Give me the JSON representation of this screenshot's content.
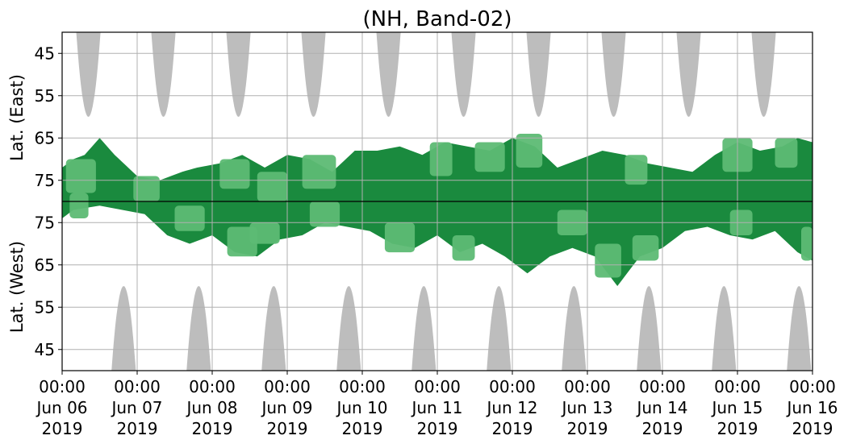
{
  "chart_data": {
    "type": "heatmap",
    "title": "(NH, Band-02)",
    "ylabel_top": "Lat. (East)",
    "ylabel_bottom": "Lat. (West)",
    "y_ticks_top": [
      "45",
      "55",
      "65",
      "75"
    ],
    "y_ticks_bottom": [
      "75",
      "65",
      "55",
      "45"
    ],
    "x_ticks": [
      {
        "time": "00:00",
        "date": "Jun 06",
        "year": "2019"
      },
      {
        "time": "00:00",
        "date": "Jun 07",
        "year": "2019"
      },
      {
        "time": "00:00",
        "date": "Jun 08",
        "year": "2019"
      },
      {
        "time": "00:00",
        "date": "Jun 09",
        "year": "2019"
      },
      {
        "time": "00:00",
        "date": "Jun 10",
        "year": "2019"
      },
      {
        "time": "00:00",
        "date": "Jun 11",
        "year": "2019"
      },
      {
        "time": "00:00",
        "date": "Jun 12",
        "year": "2019"
      },
      {
        "time": "00:00",
        "date": "Jun 13",
        "year": "2019"
      },
      {
        "time": "00:00",
        "date": "Jun 14",
        "year": "2019"
      },
      {
        "time": "00:00",
        "date": "Jun 15",
        "year": "2019"
      },
      {
        "time": "00:00",
        "date": "Jun 16",
        "year": "2019"
      }
    ],
    "x_range_days": [
      0,
      10
    ],
    "grid": true,
    "colors": {
      "no_data": "#bdbdbd",
      "strong": "#1a8a3e",
      "moderate": "#5dbb74"
    },
    "no_data_east": [
      {
        "center_day": 0.35,
        "half_width_day": 0.17,
        "lowest_lat": 60
      },
      {
        "center_day": 1.35,
        "half_width_day": 0.17,
        "lowest_lat": 60
      },
      {
        "center_day": 2.35,
        "half_width_day": 0.17,
        "lowest_lat": 60
      },
      {
        "center_day": 3.35,
        "half_width_day": 0.17,
        "lowest_lat": 60
      },
      {
        "center_day": 4.35,
        "half_width_day": 0.17,
        "lowest_lat": 60
      },
      {
        "center_day": 5.35,
        "half_width_day": 0.17,
        "lowest_lat": 60
      },
      {
        "center_day": 6.35,
        "half_width_day": 0.17,
        "lowest_lat": 60
      },
      {
        "center_day": 7.35,
        "half_width_day": 0.17,
        "lowest_lat": 60
      },
      {
        "center_day": 8.35,
        "half_width_day": 0.17,
        "lowest_lat": 60
      },
      {
        "center_day": 9.35,
        "half_width_day": 0.17,
        "lowest_lat": 60
      }
    ],
    "no_data_west": [
      {
        "center_day": 0.82,
        "half_width_day": 0.17,
        "lowest_lat": 60
      },
      {
        "center_day": 1.82,
        "half_width_day": 0.17,
        "lowest_lat": 60
      },
      {
        "center_day": 2.82,
        "half_width_day": 0.17,
        "lowest_lat": 60
      },
      {
        "center_day": 3.82,
        "half_width_day": 0.17,
        "lowest_lat": 60
      },
      {
        "center_day": 4.82,
        "half_width_day": 0.17,
        "lowest_lat": 60
      },
      {
        "center_day": 5.82,
        "half_width_day": 0.17,
        "lowest_lat": 60
      },
      {
        "center_day": 6.82,
        "half_width_day": 0.17,
        "lowest_lat": 60
      },
      {
        "center_day": 7.82,
        "half_width_day": 0.17,
        "lowest_lat": 60
      },
      {
        "center_day": 8.82,
        "half_width_day": 0.17,
        "lowest_lat": 60
      },
      {
        "center_day": 9.82,
        "half_width_day": 0.17,
        "lowest_lat": 60
      }
    ],
    "activity_east": [
      {
        "day": 0.0,
        "lowest_lat": 72
      },
      {
        "day": 0.15,
        "lowest_lat": 70
      },
      {
        "day": 0.3,
        "lowest_lat": 69
      },
      {
        "day": 0.5,
        "lowest_lat": 65
      },
      {
        "day": 0.7,
        "lowest_lat": 69
      },
      {
        "day": 1.0,
        "lowest_lat": 74
      },
      {
        "day": 1.3,
        "lowest_lat": 75
      },
      {
        "day": 1.6,
        "lowest_lat": 73
      },
      {
        "day": 1.8,
        "lowest_lat": 72
      },
      {
        "day": 2.1,
        "lowest_lat": 71
      },
      {
        "day": 2.4,
        "lowest_lat": 69
      },
      {
        "day": 2.7,
        "lowest_lat": 72
      },
      {
        "day": 3.0,
        "lowest_lat": 69
      },
      {
        "day": 3.3,
        "lowest_lat": 70
      },
      {
        "day": 3.6,
        "lowest_lat": 73
      },
      {
        "day": 3.9,
        "lowest_lat": 68
      },
      {
        "day": 4.2,
        "lowest_lat": 68
      },
      {
        "day": 4.5,
        "lowest_lat": 67
      },
      {
        "day": 4.8,
        "lowest_lat": 69
      },
      {
        "day": 5.1,
        "lowest_lat": 66
      },
      {
        "day": 5.4,
        "lowest_lat": 67
      },
      {
        "day": 5.7,
        "lowest_lat": 68
      },
      {
        "day": 6.0,
        "lowest_lat": 65
      },
      {
        "day": 6.3,
        "lowest_lat": 67
      },
      {
        "day": 6.6,
        "lowest_lat": 72
      },
      {
        "day": 6.9,
        "lowest_lat": 70
      },
      {
        "day": 7.2,
        "lowest_lat": 68
      },
      {
        "day": 7.5,
        "lowest_lat": 69
      },
      {
        "day": 7.8,
        "lowest_lat": 71
      },
      {
        "day": 8.1,
        "lowest_lat": 72
      },
      {
        "day": 8.4,
        "lowest_lat": 73
      },
      {
        "day": 8.7,
        "lowest_lat": 69
      },
      {
        "day": 9.0,
        "lowest_lat": 66
      },
      {
        "day": 9.3,
        "lowest_lat": 68
      },
      {
        "day": 9.6,
        "lowest_lat": 67
      },
      {
        "day": 9.8,
        "lowest_lat": 65
      },
      {
        "day": 10.0,
        "lowest_lat": 66
      }
    ],
    "activity_west": [
      {
        "day": 0.0,
        "lowest_lat": 76
      },
      {
        "day": 0.15,
        "lowest_lat": 78
      },
      {
        "day": 0.5,
        "lowest_lat": 79
      },
      {
        "day": 0.8,
        "lowest_lat": 78
      },
      {
        "day": 1.1,
        "lowest_lat": 77
      },
      {
        "day": 1.4,
        "lowest_lat": 72
      },
      {
        "day": 1.7,
        "lowest_lat": 70
      },
      {
        "day": 2.0,
        "lowest_lat": 72
      },
      {
        "day": 2.3,
        "lowest_lat": 68
      },
      {
        "day": 2.6,
        "lowest_lat": 67
      },
      {
        "day": 2.9,
        "lowest_lat": 71
      },
      {
        "day": 3.2,
        "lowest_lat": 72
      },
      {
        "day": 3.5,
        "lowest_lat": 75
      },
      {
        "day": 3.8,
        "lowest_lat": 74
      },
      {
        "day": 4.1,
        "lowest_lat": 73
      },
      {
        "day": 4.4,
        "lowest_lat": 70
      },
      {
        "day": 4.7,
        "lowest_lat": 69
      },
      {
        "day": 5.0,
        "lowest_lat": 72
      },
      {
        "day": 5.3,
        "lowest_lat": 68
      },
      {
        "day": 5.6,
        "lowest_lat": 70
      },
      {
        "day": 5.9,
        "lowest_lat": 67
      },
      {
        "day": 6.2,
        "lowest_lat": 63
      },
      {
        "day": 6.5,
        "lowest_lat": 67
      },
      {
        "day": 6.8,
        "lowest_lat": 69
      },
      {
        "day": 7.1,
        "lowest_lat": 67
      },
      {
        "day": 7.4,
        "lowest_lat": 60
      },
      {
        "day": 7.7,
        "lowest_lat": 67
      },
      {
        "day": 8.0,
        "lowest_lat": 69
      },
      {
        "day": 8.3,
        "lowest_lat": 73
      },
      {
        "day": 8.6,
        "lowest_lat": 74
      },
      {
        "day": 8.9,
        "lowest_lat": 72
      },
      {
        "day": 9.2,
        "lowest_lat": 71
      },
      {
        "day": 9.5,
        "lowest_lat": 73
      },
      {
        "day": 9.8,
        "lowest_lat": 68
      },
      {
        "day": 10.0,
        "lowest_lat": 66
      }
    ],
    "moderate_patches": [
      {
        "day_start": 0.05,
        "day_end": 0.45,
        "half": "east",
        "lat_low": 70,
        "lat_high": 78
      },
      {
        "day_start": 0.1,
        "day_end": 0.35,
        "half": "west",
        "lat_low": 76,
        "lat_high": 82
      },
      {
        "day_start": 0.95,
        "day_end": 1.3,
        "half": "east",
        "lat_low": 74,
        "lat_high": 80
      },
      {
        "day_start": 1.5,
        "day_end": 1.9,
        "half": "west",
        "lat_low": 73,
        "lat_high": 79
      },
      {
        "day_start": 2.1,
        "day_end": 2.5,
        "half": "east",
        "lat_low": 70,
        "lat_high": 77
      },
      {
        "day_start": 2.2,
        "day_end": 2.6,
        "half": "west",
        "lat_low": 67,
        "lat_high": 74
      },
      {
        "day_start": 2.6,
        "day_end": 3.0,
        "half": "east",
        "lat_low": 73,
        "lat_high": 80
      },
      {
        "day_start": 2.5,
        "day_end": 2.9,
        "half": "west",
        "lat_low": 70,
        "lat_high": 75
      },
      {
        "day_start": 3.2,
        "day_end": 3.65,
        "half": "east",
        "lat_low": 69,
        "lat_high": 77
      },
      {
        "day_start": 3.3,
        "day_end": 3.7,
        "half": "west",
        "lat_low": 74,
        "lat_high": 80
      },
      {
        "day_start": 4.3,
        "day_end": 4.7,
        "half": "west",
        "lat_low": 68,
        "lat_high": 75
      },
      {
        "day_start": 4.9,
        "day_end": 5.2,
        "half": "east",
        "lat_low": 66,
        "lat_high": 74
      },
      {
        "day_start": 5.2,
        "day_end": 5.5,
        "half": "west",
        "lat_low": 66,
        "lat_high": 72
      },
      {
        "day_start": 5.5,
        "day_end": 5.9,
        "half": "east",
        "lat_low": 66,
        "lat_high": 73
      },
      {
        "day_start": 6.05,
        "day_end": 6.4,
        "half": "east",
        "lat_low": 64,
        "lat_high": 72
      },
      {
        "day_start": 6.6,
        "day_end": 7.0,
        "half": "west",
        "lat_low": 72,
        "lat_high": 78
      },
      {
        "day_start": 7.1,
        "day_end": 7.45,
        "half": "west",
        "lat_low": 62,
        "lat_high": 70
      },
      {
        "day_start": 7.5,
        "day_end": 7.8,
        "half": "east",
        "lat_low": 69,
        "lat_high": 76
      },
      {
        "day_start": 7.6,
        "day_end": 7.95,
        "half": "west",
        "lat_low": 66,
        "lat_high": 72
      },
      {
        "day_start": 8.8,
        "day_end": 9.2,
        "half": "east",
        "lat_low": 65,
        "lat_high": 73
      },
      {
        "day_start": 8.9,
        "day_end": 9.2,
        "half": "west",
        "lat_low": 72,
        "lat_high": 78
      },
      {
        "day_start": 9.5,
        "day_end": 9.8,
        "half": "east",
        "lat_low": 65,
        "lat_high": 72
      },
      {
        "day_start": 9.85,
        "day_end": 10.0,
        "half": "west",
        "lat_low": 66,
        "lat_high": 74
      }
    ]
  }
}
